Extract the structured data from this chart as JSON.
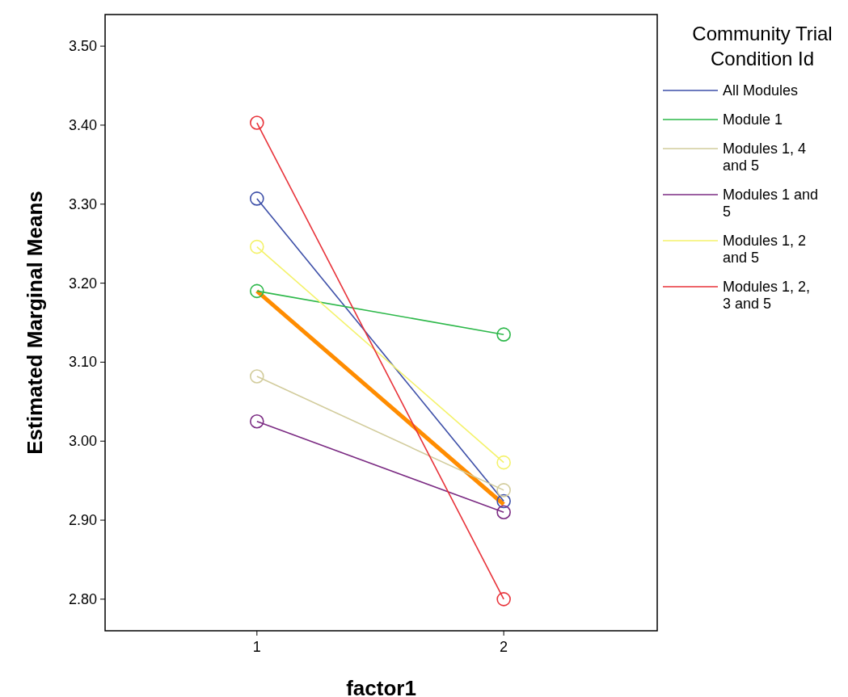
{
  "chart_data": {
    "type": "line",
    "xlabel": "factor1",
    "ylabel": "Estimated Marginal Means",
    "legend_title": "Community Trial Condition Id",
    "categories": [
      "1",
      "2"
    ],
    "ylim": [
      2.76,
      3.54
    ],
    "yticks": [
      {
        "value": 2.8,
        "label": "2.80"
      },
      {
        "value": 2.9,
        "label": "2.90"
      },
      {
        "value": 3.0,
        "label": "3.00"
      },
      {
        "value": 3.1,
        "label": "3.10"
      },
      {
        "value": 3.2,
        "label": "3.20"
      },
      {
        "value": 3.3,
        "label": "3.30"
      },
      {
        "value": 3.4,
        "label": "3.40"
      },
      {
        "value": 3.5,
        "label": "3.50"
      }
    ],
    "grid": false,
    "legend": "right",
    "marker": "circle",
    "line_style": "solid",
    "series": [
      {
        "name": "All Modules",
        "color": "#3d4fa8",
        "values": [
          3.307,
          2.924
        ]
      },
      {
        "name": "Module 1",
        "color": "#2db84a",
        "values": [
          3.19,
          3.135
        ]
      },
      {
        "name": "Modules 1, 4 and 5",
        "color": "#d2cc9c",
        "values": [
          3.082,
          2.938
        ]
      },
      {
        "name": "Modules 1 and 5",
        "color": "#7b2b83",
        "values": [
          3.025,
          2.91
        ]
      },
      {
        "name": "Modules 1, 2 and 5",
        "color": "#f4f26a",
        "values": [
          3.246,
          2.973
        ]
      },
      {
        "name": "Modules 1, 2, 3 and 5",
        "color": "#e8333a",
        "values": [
          3.403,
          2.8
        ]
      },
      {
        "color": "#ff8c00",
        "values": [
          3.19,
          2.92
        ],
        "marker": "none"
      }
    ]
  }
}
